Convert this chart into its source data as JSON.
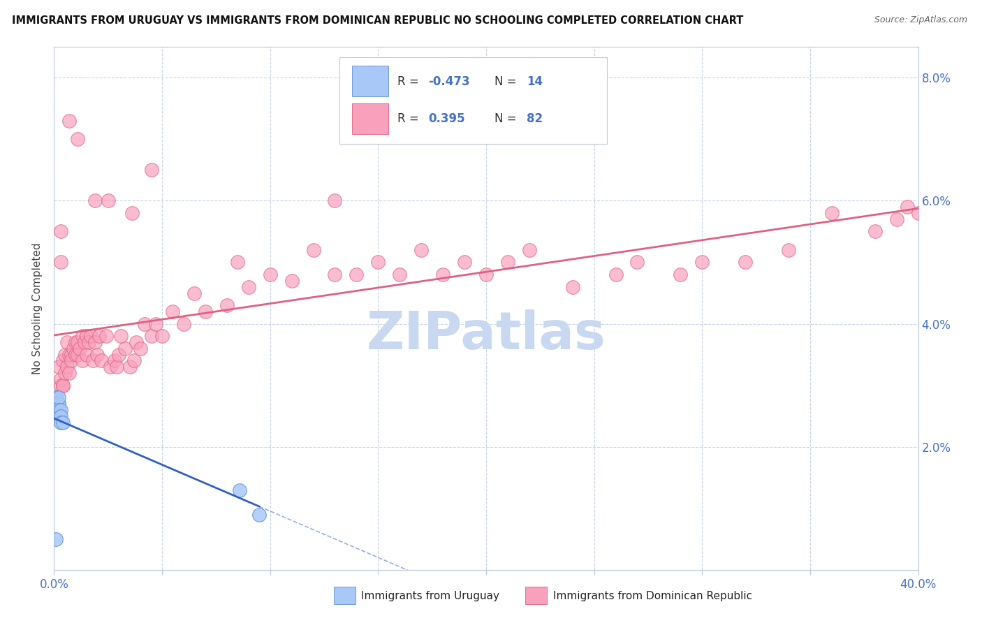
{
  "title": "IMMIGRANTS FROM URUGUAY VS IMMIGRANTS FROM DOMINICAN REPUBLIC NO SCHOOLING COMPLETED CORRELATION CHART",
  "source": "Source: ZipAtlas.com",
  "ylabel": "No Schooling Completed",
  "xlim": [
    0.0,
    0.4
  ],
  "ylim": [
    0.0,
    0.085
  ],
  "xticks": [
    0.0,
    0.05,
    0.1,
    0.15,
    0.2,
    0.25,
    0.3,
    0.35,
    0.4
  ],
  "yticks": [
    0.0,
    0.02,
    0.04,
    0.06,
    0.08
  ],
  "color_uruguay": "#A8C8F8",
  "color_uruguay_edge": "#6090D0",
  "color_dominican": "#F8A0BC",
  "color_dominican_edge": "#E06080",
  "color_uruguay_line": "#3060C0",
  "color_dominican_line": "#E06080",
  "background_color": "#FFFFFF",
  "grid_color": "#C8D4E8",
  "watermark_color": "#C8D8F0",
  "uruguay_x": [
    0.001,
    0.001,
    0.001,
    0.002,
    0.002,
    0.002,
    0.002,
    0.003,
    0.003,
    0.003,
    0.004,
    0.086,
    0.095,
    0.001
  ],
  "uruguay_y": [
    0.027,
    0.028,
    0.027,
    0.027,
    0.028,
    0.026,
    0.025,
    0.026,
    0.025,
    0.024,
    0.024,
    0.013,
    0.009,
    0.005
  ],
  "dominican_x": [
    0.001,
    0.001,
    0.002,
    0.002,
    0.003,
    0.003,
    0.004,
    0.004,
    0.004,
    0.005,
    0.005,
    0.006,
    0.006,
    0.007,
    0.007,
    0.008,
    0.008,
    0.009,
    0.01,
    0.01,
    0.011,
    0.011,
    0.012,
    0.013,
    0.013,
    0.014,
    0.015,
    0.015,
    0.016,
    0.017,
    0.018,
    0.019,
    0.02,
    0.021,
    0.022,
    0.024,
    0.026,
    0.028,
    0.029,
    0.03,
    0.031,
    0.033,
    0.035,
    0.037,
    0.038,
    0.04,
    0.042,
    0.045,
    0.047,
    0.05,
    0.055,
    0.06,
    0.065,
    0.07,
    0.08,
    0.085,
    0.09,
    0.1,
    0.11,
    0.12,
    0.13,
    0.14,
    0.15,
    0.16,
    0.17,
    0.18,
    0.19,
    0.2,
    0.21,
    0.22,
    0.24,
    0.26,
    0.27,
    0.29,
    0.3,
    0.32,
    0.34,
    0.36,
    0.38,
    0.39,
    0.395,
    0.4
  ],
  "dominican_y": [
    0.025,
    0.028,
    0.027,
    0.033,
    0.03,
    0.031,
    0.03,
    0.034,
    0.03,
    0.035,
    0.032,
    0.033,
    0.037,
    0.032,
    0.035,
    0.035,
    0.034,
    0.036,
    0.035,
    0.037,
    0.037,
    0.035,
    0.036,
    0.038,
    0.034,
    0.037,
    0.038,
    0.035,
    0.037,
    0.038,
    0.034,
    0.037,
    0.035,
    0.038,
    0.034,
    0.038,
    0.033,
    0.034,
    0.033,
    0.035,
    0.038,
    0.036,
    0.033,
    0.034,
    0.037,
    0.036,
    0.04,
    0.038,
    0.04,
    0.038,
    0.042,
    0.04,
    0.045,
    0.042,
    0.043,
    0.05,
    0.046,
    0.048,
    0.047,
    0.052,
    0.048,
    0.048,
    0.05,
    0.048,
    0.052,
    0.048,
    0.05,
    0.048,
    0.05,
    0.052,
    0.046,
    0.048,
    0.05,
    0.048,
    0.05,
    0.05,
    0.052,
    0.058,
    0.055,
    0.057,
    0.059,
    0.058
  ],
  "dom_outliers_x": [
    0.007,
    0.011,
    0.045,
    0.13,
    0.019,
    0.025,
    0.036,
    0.003,
    0.003
  ],
  "dom_outliers_y": [
    0.073,
    0.07,
    0.065,
    0.06,
    0.06,
    0.06,
    0.058,
    0.055,
    0.05
  ]
}
